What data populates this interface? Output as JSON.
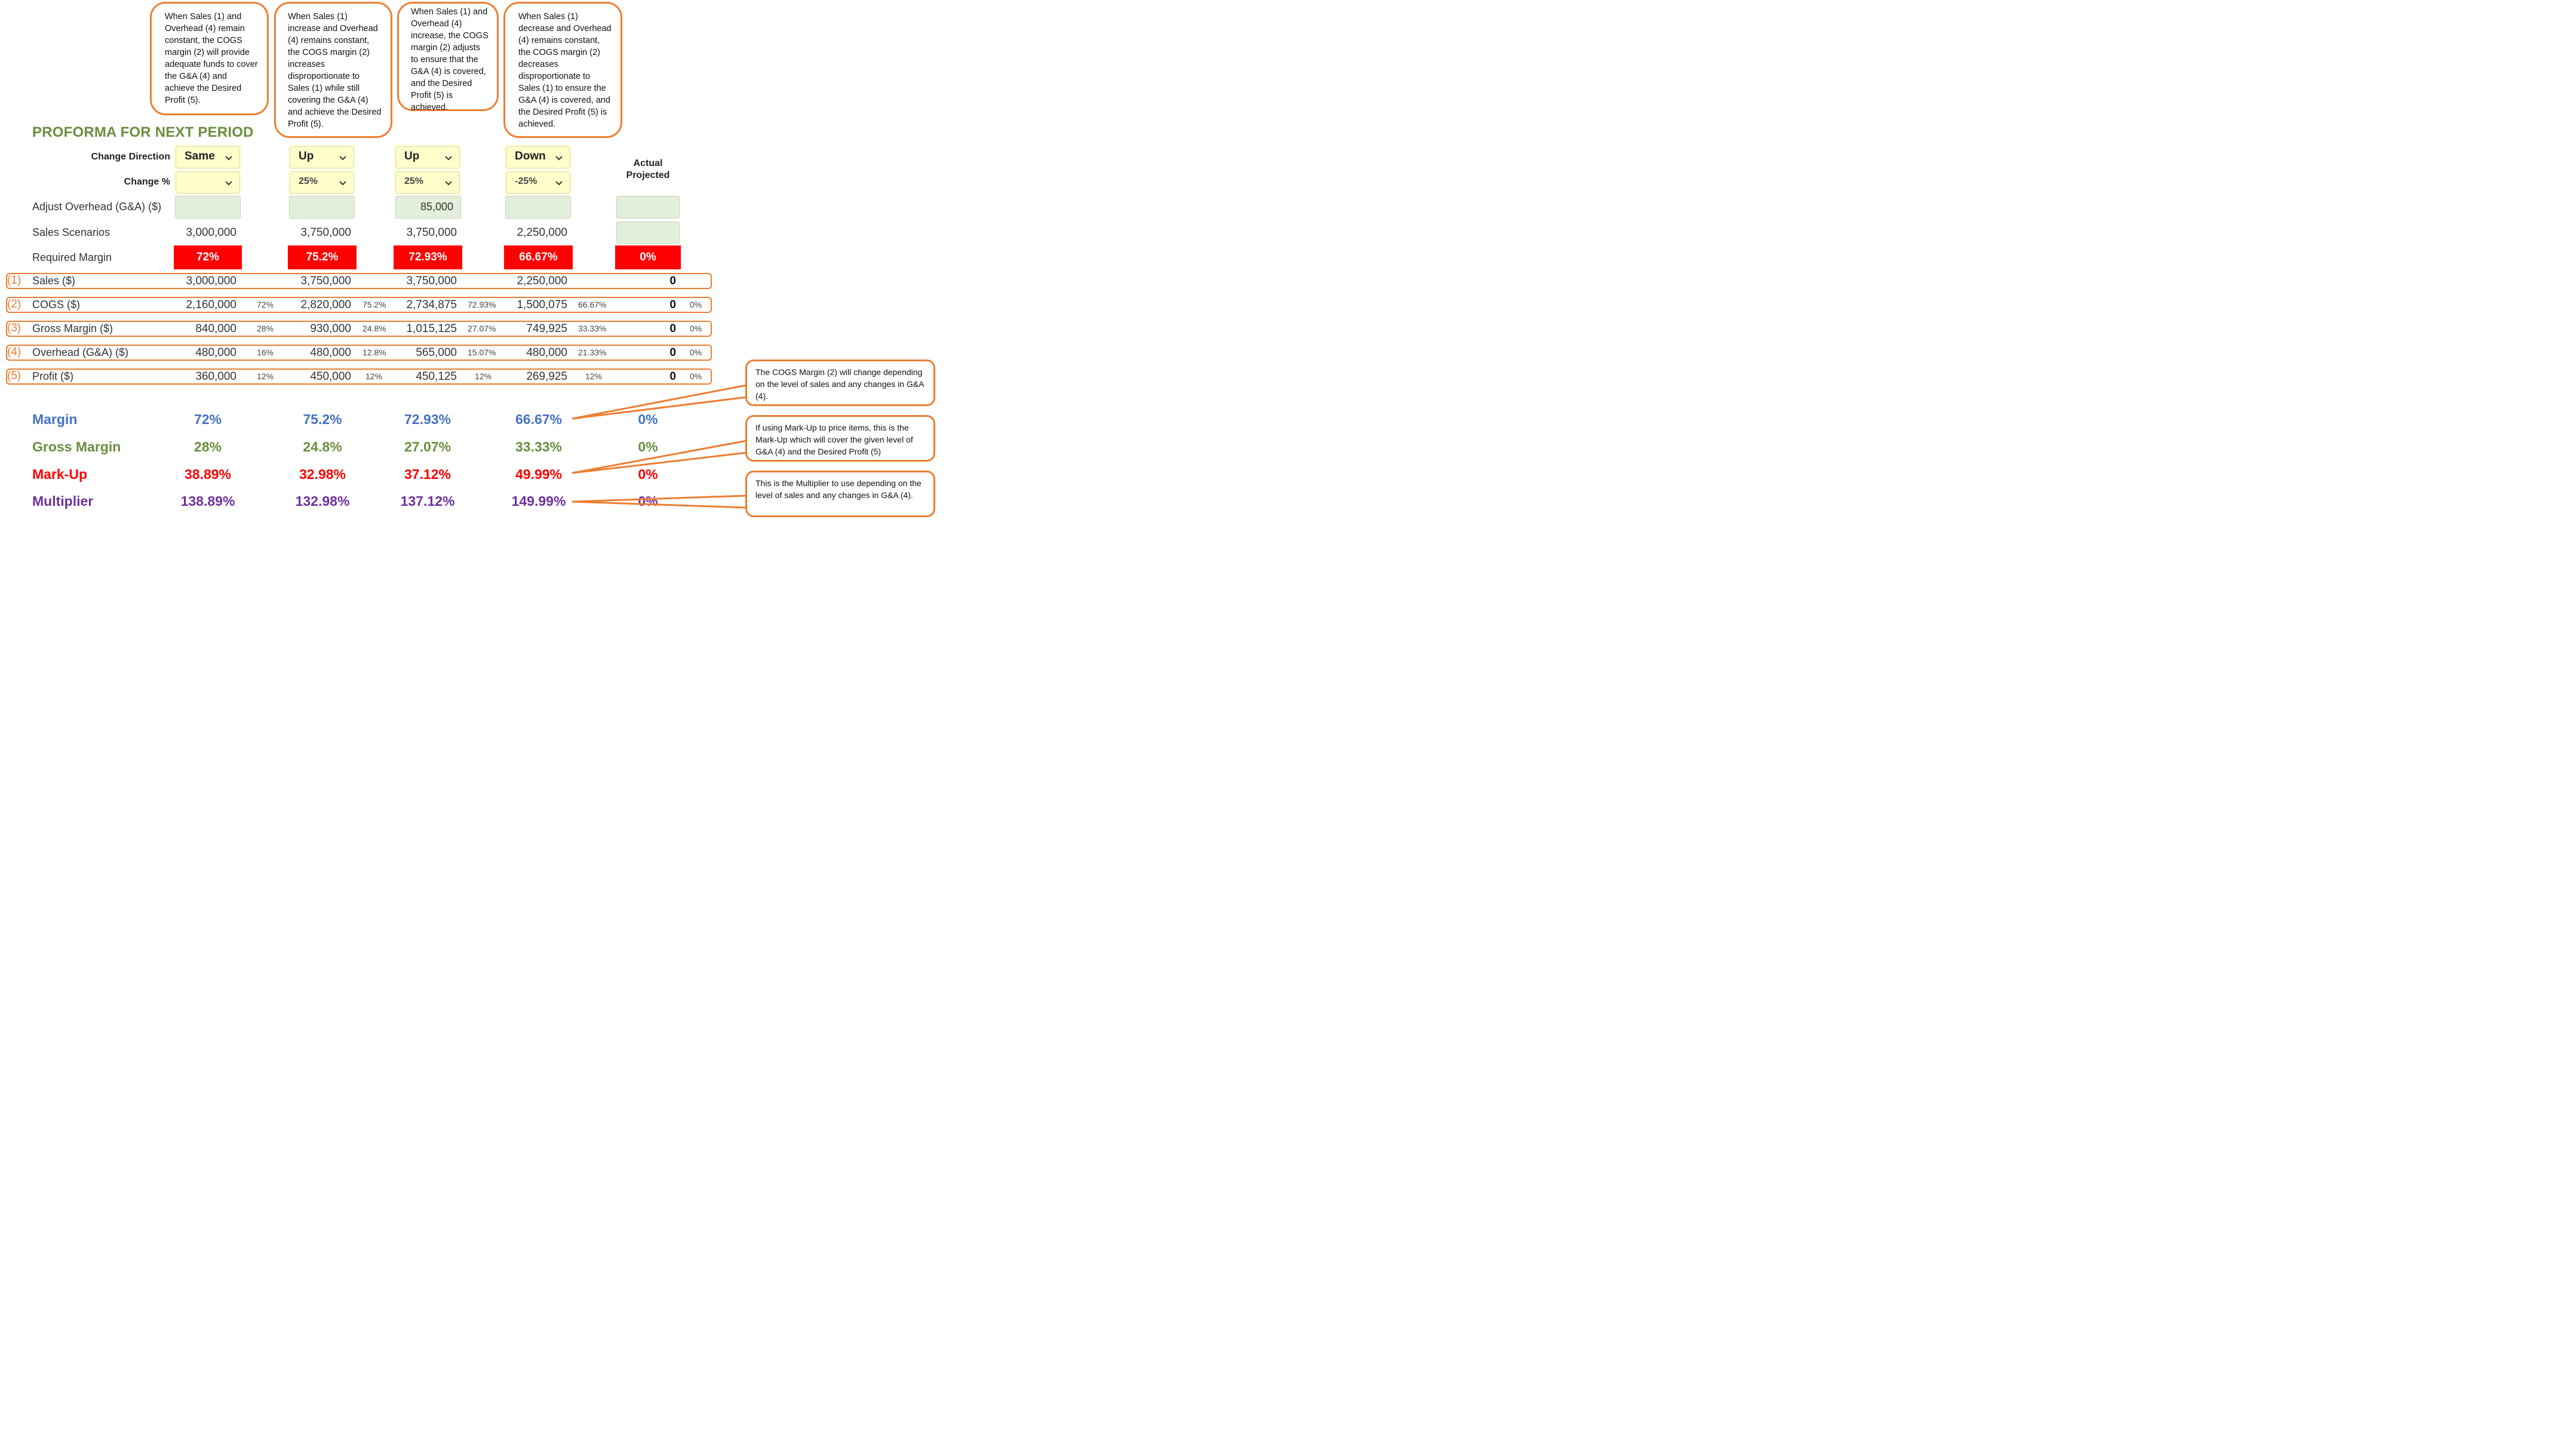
{
  "callouts": {
    "c1": "When Sales (1) and Overhead (4) remain constant, the COGS margin (2) will provide adequate funds to cover the G&A (4) and achieve the Desired Profit (5).",
    "c2": "When Sales (1) increase and Overhead (4) remains constant, the COGS margin (2) increases disproportionate to Sales (1) while still covering the G&A (4) and achieve the Desired Profit (5).",
    "c3": "When Sales (1) and Overhead (4) increase, the COGS margin (2) adjusts to ensure that the G&A (4) is covered, and the Desired Profit (5) is achieved.",
    "c4": "When Sales (1) decrease and Overhead (4) remains constant, the COGS margin (2) decreases disproportionate to Sales (1) to ensure the G&A (4) is covered, and the Desired Profit (5) is achieved.",
    "r1": "The COGS Margin (2) will change depending on the level of sales and any changes in G&A (4).",
    "r2": "If using Mark-Up to price items, this is the Mark-Up which will cover the given level of G&A (4) and the Desired Profit (5)",
    "r3": "This is the Multiplier to use depending on the level of sales and any changes in G&A (4)."
  },
  "title": "PROFORMA FOR NEXT PERIOD",
  "labels": {
    "change_direction": "Change Direction",
    "change_pct": "Change %",
    "adjust_overhead": "Adjust Overhead (G&A) ($)",
    "sales_scenarios": "Sales Scenarios",
    "required_margin": "Required Margin",
    "actual_projected_1": "Actual",
    "actual_projected_2": "Projected"
  },
  "scenarios": [
    {
      "direction": "Same",
      "change_pct": "",
      "overhead_adj": "",
      "sales": "3,000,000",
      "required_margin": "72%"
    },
    {
      "direction": "Up",
      "change_pct": "25%",
      "overhead_adj": "",
      "sales": "3,750,000",
      "required_margin": "75.2%"
    },
    {
      "direction": "Up",
      "change_pct": "25%",
      "overhead_adj": "85,000",
      "sales": "3,750,000",
      "required_margin": "72.93%"
    },
    {
      "direction": "Down",
      "change_pct": "-25%",
      "overhead_adj": "",
      "sales": "2,250,000",
      "required_margin": "66.67%"
    }
  ],
  "actual": {
    "required_margin": "0%"
  },
  "rows": [
    {
      "num": "(1)",
      "label": "Sales ($)",
      "vals": [
        "3,000,000",
        "3,750,000",
        "3,750,000",
        "2,250,000"
      ],
      "pcts": [
        "",
        "",
        "",
        ""
      ],
      "actual": "0",
      "actual_pct": ""
    },
    {
      "num": "(2)",
      "label": "COGS ($)",
      "vals": [
        "2,160,000",
        "2,820,000",
        "2,734,875",
        "1,500,075"
      ],
      "pcts": [
        "72%",
        "75.2%",
        "72.93%",
        "66.67%"
      ],
      "actual": "0",
      "actual_pct": "0%"
    },
    {
      "num": "(3)",
      "label": "Gross Margin ($)",
      "vals": [
        "840,000",
        "930,000",
        "1,015,125",
        "749,925"
      ],
      "pcts": [
        "28%",
        "24.8%",
        "27.07%",
        "33.33%"
      ],
      "actual": "0",
      "actual_pct": "0%"
    },
    {
      "num": "(4)",
      "label": "Overhead (G&A) ($)",
      "vals": [
        "480,000",
        "480,000",
        "565,000",
        "480,000"
      ],
      "pcts": [
        "16%",
        "12.8%",
        "15.07%",
        "21.33%"
      ],
      "actual": "0",
      "actual_pct": "0%"
    },
    {
      "num": "(5)",
      "label": "Profit ($)",
      "vals": [
        "360,000",
        "450,000",
        "450,125",
        "269,925"
      ],
      "pcts": [
        "12%",
        "12%",
        "12%",
        "12%"
      ],
      "actual": "0",
      "actual_pct": "0%"
    }
  ],
  "summary": [
    {
      "label": "Margin",
      "vals": [
        "72%",
        "75.2%",
        "72.93%",
        "66.67%",
        "0%"
      ]
    },
    {
      "label": "Gross Margin",
      "vals": [
        "28%",
        "24.8%",
        "27.07%",
        "33.33%",
        "0%"
      ]
    },
    {
      "label": "Mark-Up",
      "vals": [
        "38.89%",
        "32.98%",
        "37.12%",
        "49.99%",
        "0%"
      ]
    },
    {
      "label": "Multiplier",
      "vals": [
        "138.89%",
        "132.98%",
        "137.12%",
        "149.99%",
        "0%"
      ]
    }
  ],
  "colors": {
    "accent": "#ED7D31",
    "title_green": "#6A8E3F",
    "margin_blue": "#4472C4",
    "markup_red": "#FF0000",
    "multiplier_purple": "#7030A0",
    "dropdown_yellow": "#FFFFCC",
    "input_green": "#E2EFDA"
  }
}
